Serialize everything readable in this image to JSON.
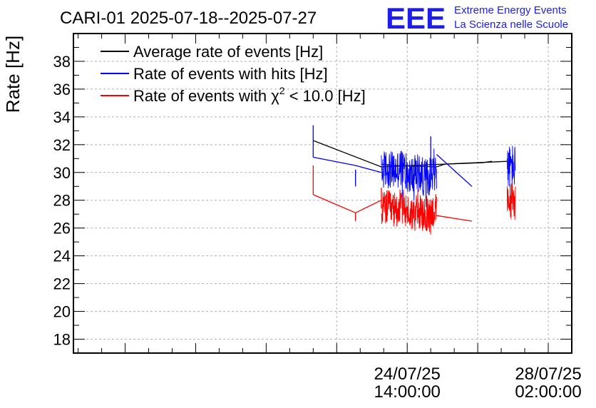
{
  "header": {
    "title": "CARI-01 2025-07-18--2025-07-27",
    "logo_text": "EEE",
    "logo_line1": "Extreme Energy Events",
    "logo_line2": "La Scienza nelle Scuole"
  },
  "chart_data": {
    "type": "line",
    "title": "CARI-01 2025-07-18--2025-07-27",
    "ylabel": "Rate [Hz]",
    "xlabel": "",
    "ylim": [
      17,
      40
    ],
    "xlim_hours": [
      0,
      212
    ],
    "grid": true,
    "y_ticks": [
      18,
      20,
      22,
      24,
      26,
      28,
      30,
      32,
      34,
      36,
      38
    ],
    "x_ticks": [
      {
        "hours": 142.0,
        "label_date": "24/07/25",
        "label_time": "14:00:00"
      },
      {
        "hours": 202.0,
        "label_date": "28/07/25",
        "label_time": "02:00:00"
      }
    ],
    "legend_position": "top-left",
    "series": [
      {
        "name": "Average rate of events [Hz]",
        "color": "#000000",
        "segments": [
          {
            "x_hours": [
              102.0,
              131.0,
              184.5
            ],
            "values": [
              32.3,
              30.4,
              30.8
            ]
          },
          {
            "x_hours": [
              131.0,
              136.0,
              154.5,
              158.0,
              174.0,
              178.0
            ],
            "values": [
              30.6,
              30.5,
              30.4,
              30.6,
              30.7,
              30.8
            ]
          }
        ]
      },
      {
        "name": "Rate of events with hits [Hz]",
        "color": "#0000ff",
        "segments": [
          {
            "x_hours": [
              102.0,
              120.0,
              131.0
            ],
            "values": [
              31.1,
              30.5,
              30.0
            ]
          },
          {
            "x_hours": [
              154.5,
              169.5
            ],
            "values": [
              31.3,
              29.0
            ]
          }
        ],
        "noisy_bands": [
          {
            "x_start_hours": 131.0,
            "x_end_hours": 154.5,
            "mean": 30.0,
            "amplitude": 1.4
          },
          {
            "x_start_hours": 184.5,
            "x_end_hours": 188.0,
            "mean": 30.2,
            "amplitude": 1.6
          }
        ],
        "spikes": [
          {
            "x_hours": 102.0,
            "from": 31.1,
            "to": 33.4
          },
          {
            "x_hours": 120.0,
            "from": 30.2,
            "to": 29.0
          },
          {
            "x_hours": 152.0,
            "from": 30.5,
            "to": 32.6
          }
        ]
      },
      {
        "name": "Rate of events with χ² < 10.0 [Hz]",
        "color": "#ff0000",
        "segments": [
          {
            "x_hours": [
              102.0,
              120.0,
              131.0
            ],
            "values": [
              28.4,
              27.1,
              28.0
            ]
          },
          {
            "x_hours": [
              154.5,
              169.5
            ],
            "values": [
              26.9,
              26.5
            ]
          }
        ],
        "noisy_bands": [
          {
            "x_start_hours": 131.0,
            "x_end_hours": 154.5,
            "mean": 27.2,
            "amplitude": 1.3
          },
          {
            "x_start_hours": 184.5,
            "x_end_hours": 188.0,
            "mean": 27.7,
            "amplitude": 1.4
          }
        ],
        "spikes": [
          {
            "x_hours": 102.0,
            "from": 28.4,
            "to": 30.5
          },
          {
            "x_hours": 120.0,
            "from": 27.1,
            "to": 26.5
          },
          {
            "x_hours": 131.0,
            "from": 27.4,
            "to": 28.9
          }
        ]
      }
    ],
    "legend": [
      {
        "label_main": "Average rate of events [Hz]",
        "color": "#000000"
      },
      {
        "label_main": "Rate of events with hits [Hz]",
        "color": "#0000ff"
      },
      {
        "label_pre": "Rate of events with ",
        "label_chi": "χ",
        "label_sup": "2",
        "label_post": " < 10.0 [Hz]",
        "color": "#ff0000"
      }
    ]
  }
}
